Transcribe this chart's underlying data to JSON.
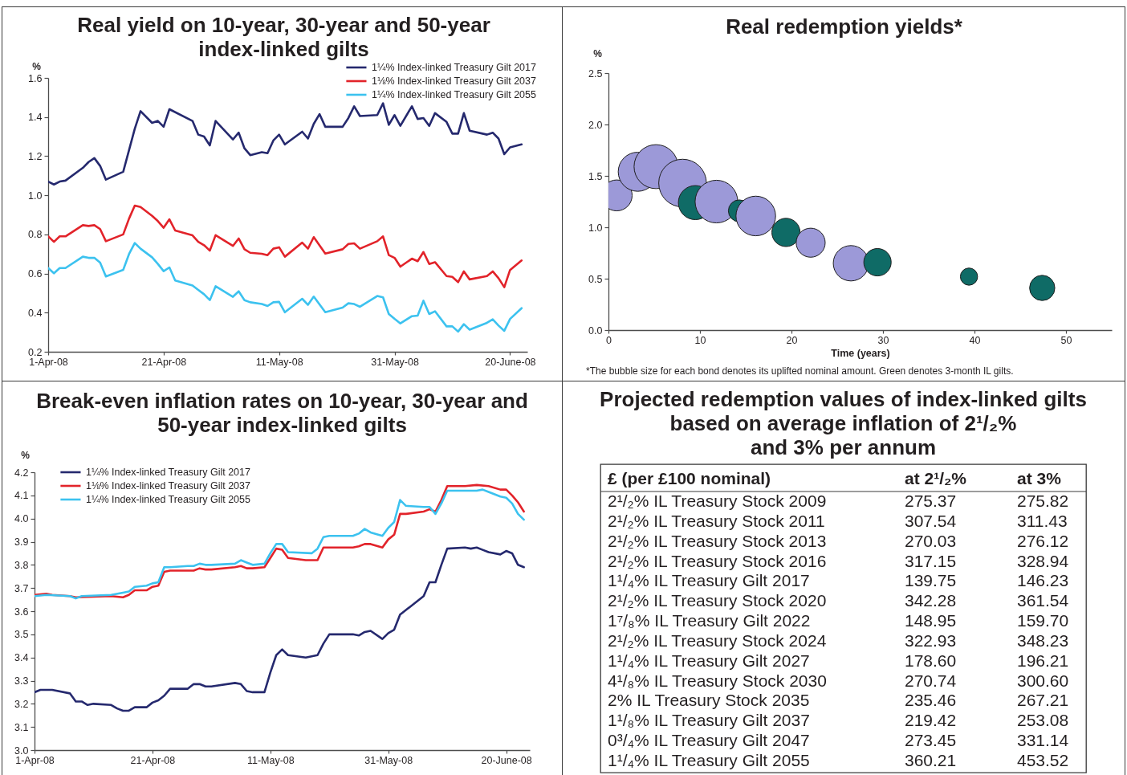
{
  "chart_data": [
    {
      "type": "line",
      "title": "Real yield on 10-year, 30-year and 50-year index-linked gilts",
      "ylabel": "%",
      "legend": "top right",
      "xlim": [
        "2008-04-01",
        "2008-06-23"
      ],
      "xticks": [
        {
          "value": "2008-04-01",
          "label": "1-Apr-08"
        },
        {
          "value": "2008-04-21",
          "label": "21-Apr-08"
        },
        {
          "value": "2008-05-11",
          "label": "11-May-08"
        },
        {
          "value": "2008-05-31",
          "label": "31-May-08"
        },
        {
          "value": "2008-06-20",
          "label": "20-June-08"
        }
      ],
      "ylim": [
        0.2,
        1.6
      ],
      "yticks": [
        0.2,
        0.4,
        0.6,
        0.8,
        {
          "value": 1,
          "label": "1.0"
        },
        1.2,
        1.4,
        1.6
      ],
      "series": [
        {
          "name": "1¼% Index-linked Treasury Gilt 2017",
          "color": "#25296e",
          "x": [
            "2008-04-01",
            "2008-04-02",
            "2008-04-03",
            "2008-04-04",
            "2008-04-07",
            "2008-04-08",
            "2008-04-09",
            "2008-04-10",
            "2008-04-11",
            "2008-04-14",
            "2008-04-16",
            "2008-04-17",
            "2008-04-19",
            "2008-04-20",
            "2008-04-21",
            "2008-04-22",
            "2008-04-26",
            "2008-04-27",
            "2008-04-28",
            "2008-04-29",
            "2008-04-30",
            "2008-05-03",
            "2008-05-04",
            "2008-05-05",
            "2008-05-06",
            "2008-05-08",
            "2008-05-09",
            "2008-05-10",
            "2008-05-11",
            "2008-05-12",
            "2008-05-15",
            "2008-05-16",
            "2008-05-17",
            "2008-05-18",
            "2008-05-19",
            "2008-05-22",
            "2008-05-23",
            "2008-05-24",
            "2008-05-25",
            "2008-05-28",
            "2008-05-29",
            "2008-05-30",
            "2008-05-31",
            "2008-06-01",
            "2008-06-03",
            "2008-06-04",
            "2008-06-05",
            "2008-06-06",
            "2008-06-07",
            "2008-06-09",
            "2008-06-10",
            "2008-06-11",
            "2008-06-12",
            "2008-06-13",
            "2008-06-16",
            "2008-06-17",
            "2008-06-18",
            "2008-06-19",
            "2008-06-20",
            "2008-06-22"
          ],
          "values": [
            1.07,
            1.055,
            1.07,
            1.075,
            1.14,
            1.17,
            1.19,
            1.15,
            1.08,
            1.12,
            1.34,
            1.43,
            1.37,
            1.38,
            1.35,
            1.44,
            1.38,
            1.31,
            1.3,
            1.255,
            1.38,
            1.285,
            1.32,
            1.24,
            1.205,
            1.22,
            1.215,
            1.28,
            1.31,
            1.26,
            1.325,
            1.29,
            1.365,
            1.415,
            1.35,
            1.35,
            1.395,
            1.455,
            1.405,
            1.41,
            1.47,
            1.36,
            1.41,
            1.355,
            1.455,
            1.39,
            1.395,
            1.355,
            1.42,
            1.375,
            1.315,
            1.315,
            1.42,
            1.33,
            1.31,
            1.32,
            1.29,
            1.21,
            1.245,
            1.26
          ]
        },
        {
          "name": "1⅛% Index-linked Treasury Gilt 2037",
          "color": "#e2232a",
          "x": [
            "2008-04-01",
            "2008-04-02",
            "2008-04-03",
            "2008-04-04",
            "2008-04-07",
            "2008-04-08",
            "2008-04-09",
            "2008-04-10",
            "2008-04-11",
            "2008-04-14",
            "2008-04-15",
            "2008-04-16",
            "2008-04-17",
            "2008-04-19",
            "2008-04-20",
            "2008-04-21",
            "2008-04-22",
            "2008-04-23",
            "2008-04-26",
            "2008-04-27",
            "2008-04-28",
            "2008-04-29",
            "2008-04-30",
            "2008-05-03",
            "2008-05-04",
            "2008-05-05",
            "2008-05-06",
            "2008-05-08",
            "2008-05-09",
            "2008-05-10",
            "2008-05-11",
            "2008-05-12",
            "2008-05-15",
            "2008-05-16",
            "2008-05-17",
            "2008-05-19",
            "2008-05-22",
            "2008-05-23",
            "2008-05-24",
            "2008-05-25",
            "2008-05-28",
            "2008-05-29",
            "2008-05-30",
            "2008-05-31",
            "2008-06-01",
            "2008-06-03",
            "2008-06-04",
            "2008-06-05",
            "2008-06-06",
            "2008-06-07",
            "2008-06-09",
            "2008-06-10",
            "2008-06-11",
            "2008-06-12",
            "2008-06-13",
            "2008-06-16",
            "2008-06-17",
            "2008-06-18",
            "2008-06-19",
            "2008-06-20",
            "2008-06-22"
          ],
          "values": [
            0.79,
            0.762,
            0.79,
            0.79,
            0.847,
            0.843,
            0.847,
            0.827,
            0.765,
            0.8,
            0.88,
            0.947,
            0.94,
            0.895,
            0.868,
            0.834,
            0.877,
            0.82,
            0.795,
            0.762,
            0.745,
            0.717,
            0.796,
            0.741,
            0.779,
            0.724,
            0.706,
            0.701,
            0.694,
            0.727,
            0.734,
            0.686,
            0.758,
            0.727,
            0.786,
            0.702,
            0.724,
            0.751,
            0.754,
            0.727,
            0.765,
            0.79,
            0.694,
            0.68,
            0.635,
            0.676,
            0.663,
            0.71,
            0.649,
            0.658,
            0.587,
            0.583,
            0.556,
            0.611,
            0.57,
            0.587,
            0.611,
            0.576,
            0.53,
            0.618,
            0.667
          ]
        },
        {
          "name": "1¼% Index-linked Treasury Gilt 2055",
          "color": "#3cc2ef",
          "x": [
            "2008-04-01",
            "2008-04-02",
            "2008-04-03",
            "2008-04-04",
            "2008-04-07",
            "2008-04-08",
            "2008-04-09",
            "2008-04-10",
            "2008-04-11",
            "2008-04-14",
            "2008-04-15",
            "2008-04-16",
            "2008-04-17",
            "2008-04-19",
            "2008-04-20",
            "2008-04-21",
            "2008-04-22",
            "2008-04-23",
            "2008-04-26",
            "2008-04-27",
            "2008-04-28",
            "2008-04-29",
            "2008-04-30",
            "2008-05-03",
            "2008-05-04",
            "2008-05-05",
            "2008-05-06",
            "2008-05-08",
            "2008-05-09",
            "2008-05-10",
            "2008-05-11",
            "2008-05-12",
            "2008-05-15",
            "2008-05-16",
            "2008-05-17",
            "2008-05-19",
            "2008-05-22",
            "2008-05-23",
            "2008-05-24",
            "2008-05-25",
            "2008-05-28",
            "2008-05-29",
            "2008-05-30",
            "2008-05-31",
            "2008-06-01",
            "2008-06-03",
            "2008-06-04",
            "2008-06-05",
            "2008-06-06",
            "2008-06-07",
            "2008-06-09",
            "2008-06-10",
            "2008-06-11",
            "2008-06-12",
            "2008-06-13",
            "2008-06-16",
            "2008-06-17",
            "2008-06-18",
            "2008-06-19",
            "2008-06-20",
            "2008-06-22"
          ],
          "values": [
            0.628,
            0.601,
            0.628,
            0.628,
            0.686,
            0.68,
            0.68,
            0.656,
            0.585,
            0.619,
            0.699,
            0.756,
            0.727,
            0.683,
            0.649,
            0.612,
            0.631,
            0.564,
            0.539,
            0.516,
            0.494,
            0.464,
            0.535,
            0.481,
            0.509,
            0.464,
            0.453,
            0.444,
            0.434,
            0.453,
            0.455,
            0.402,
            0.471,
            0.44,
            0.482,
            0.402,
            0.426,
            0.448,
            0.444,
            0.43,
            0.485,
            0.478,
            0.393,
            0.368,
            0.345,
            0.382,
            0.385,
            0.461,
            0.393,
            0.407,
            0.33,
            0.33,
            0.303,
            0.341,
            0.313,
            0.348,
            0.366,
            0.334,
            0.307,
            0.368,
            0.423
          ]
        }
      ]
    },
    {
      "type": "bubble",
      "title": "Real redemption yields*",
      "xlabel": "Time (years)",
      "ylabel": "%",
      "annotations": [
        "*The bubble size for each bond denotes its uplifted nominal amount. Green denotes 3-month IL gilts."
      ],
      "xlim": [
        0,
        55
      ],
      "xticks": [
        0,
        10,
        20,
        30,
        40,
        50
      ],
      "ylim": [
        0,
        2.5
      ],
      "yticks": [
        {
          "value": 0,
          "label": "0.0"
        },
        0.5,
        {
          "value": 1,
          "label": "1.0"
        },
        1.5,
        {
          "value": 2,
          "label": "2.0"
        },
        2.5
      ],
      "series": [
        {
          "color": "#9c99d8",
          "x": [
            0.9,
            3.2,
            5.2,
            8.1,
            11.8,
            16.1,
            22.1,
            26.5
          ],
          "values": [
            1.31,
            1.54,
            1.59,
            1.43,
            1.25,
            1.11,
            0.85,
            0.65
          ],
          "sizes": [
            0.42,
            0.67,
            0.85,
            1,
            0.8,
            0.69,
            0.37,
            0.55
          ]
        },
        {
          "color": "#0f6b66",
          "x": [
            9.5,
            14.3,
            19.4,
            29.4,
            39.4,
            47.4
          ],
          "values": [
            1.24,
            1.16,
            0.95,
            0.66,
            0.52,
            0.41
          ],
          "sizes": [
            0.51,
            0.21,
            0.35,
            0.33,
            0.13,
            0.28
          ]
        }
      ]
    },
    {
      "type": "line",
      "title": "Break-even inflation rates on 10-year, 30-year and 50-year index-linked gilts",
      "ylabel": "%",
      "legend": "top left",
      "xlim": [
        "2008-04-01",
        "2008-06-24"
      ],
      "xticks": [
        {
          "value": "2008-04-01",
          "label": "1-Apr-08"
        },
        {
          "value": "2008-04-21",
          "label": "21-Apr-08"
        },
        {
          "value": "2008-05-11",
          "label": "11-May-08"
        },
        {
          "value": "2008-05-31",
          "label": "31-May-08"
        },
        {
          "value": "2008-06-20",
          "label": "20-June-08"
        }
      ],
      "ylim": [
        3,
        4.2
      ],
      "yticks": [
        {
          "value": 3,
          "label": "3.0"
        },
        3.1,
        3.2,
        3.3,
        3.4,
        3.5,
        3.6,
        3.7,
        3.8,
        3.9,
        {
          "value": 4,
          "label": "4.0"
        },
        4.1,
        4.2
      ],
      "series": [
        {
          "name": "1¼% Index-linked Treasury Gilt 2017",
          "color": "#25296e",
          "x": [
            "2008-04-01",
            "2008-04-02",
            "2008-04-03",
            "2008-04-04",
            "2008-04-07",
            "2008-04-08",
            "2008-04-09",
            "2008-04-10",
            "2008-04-11",
            "2008-04-14",
            "2008-04-15",
            "2008-04-16",
            "2008-04-17",
            "2008-04-18",
            "2008-04-20",
            "2008-04-21",
            "2008-04-22",
            "2008-04-23",
            "2008-04-24",
            "2008-04-27",
            "2008-04-28",
            "2008-04-29",
            "2008-04-30",
            "2008-05-01",
            "2008-05-05",
            "2008-05-06",
            "2008-05-07",
            "2008-05-08",
            "2008-05-10",
            "2008-05-11",
            "2008-05-12",
            "2008-05-13",
            "2008-05-14",
            "2008-05-17",
            "2008-05-18",
            "2008-05-19",
            "2008-05-20",
            "2008-05-21",
            "2008-05-25",
            "2008-05-26",
            "2008-05-27",
            "2008-05-28",
            "2008-05-30",
            "2008-05-31",
            "2008-06-01",
            "2008-06-02",
            "2008-06-03",
            "2008-06-06",
            "2008-06-07",
            "2008-06-08",
            "2008-06-09",
            "2008-06-10",
            "2008-06-13",
            "2008-06-14",
            "2008-06-15",
            "2008-06-16",
            "2008-06-17",
            "2008-06-19",
            "2008-06-20",
            "2008-06-21",
            "2008-06-22",
            "2008-06-23"
          ],
          "values": [
            3.25,
            3.26,
            3.26,
            3.26,
            3.245,
            3.21,
            3.21,
            3.195,
            3.2,
            3.195,
            3.18,
            3.17,
            3.17,
            3.185,
            3.185,
            3.205,
            3.215,
            3.235,
            3.265,
            3.265,
            3.285,
            3.285,
            3.275,
            3.275,
            3.29,
            3.285,
            3.255,
            3.25,
            3.25,
            3.335,
            3.41,
            3.435,
            3.41,
            3.4,
            3.405,
            3.41,
            3.46,
            3.5,
            3.5,
            3.495,
            3.51,
            3.515,
            3.48,
            3.505,
            3.52,
            3.585,
            3.605,
            3.665,
            3.725,
            3.725,
            3.8,
            3.87,
            3.875,
            3.87,
            3.875,
            3.865,
            3.855,
            3.845,
            3.86,
            3.85,
            3.8,
            3.79
          ]
        },
        {
          "name": "1⅛% Index-linked Treasury Gilt 2037",
          "color": "#e2232a",
          "x": [
            "2008-04-01",
            "2008-04-03",
            "2008-04-04",
            "2008-04-07",
            "2008-04-08",
            "2008-04-14",
            "2008-04-16",
            "2008-04-17",
            "2008-04-18",
            "2008-04-20",
            "2008-04-21",
            "2008-04-22",
            "2008-04-23",
            "2008-04-24",
            "2008-04-27",
            "2008-04-28",
            "2008-04-29",
            "2008-04-30",
            "2008-05-01",
            "2008-05-05",
            "2008-05-06",
            "2008-05-07",
            "2008-05-08",
            "2008-05-10",
            "2008-05-11",
            "2008-05-12",
            "2008-05-13",
            "2008-05-14",
            "2008-05-17",
            "2008-05-18",
            "2008-05-19",
            "2008-05-20",
            "2008-05-21",
            "2008-05-25",
            "2008-05-26",
            "2008-05-27",
            "2008-05-28",
            "2008-05-30",
            "2008-05-31",
            "2008-06-01",
            "2008-06-02",
            "2008-06-03",
            "2008-06-06",
            "2008-06-07",
            "2008-06-08",
            "2008-06-09",
            "2008-06-10",
            "2008-06-13",
            "2008-06-15",
            "2008-06-17",
            "2008-06-19",
            "2008-06-20",
            "2008-06-21",
            "2008-06-22",
            "2008-06-23"
          ],
          "values": [
            3.67,
            3.675,
            3.67,
            3.665,
            3.66,
            3.665,
            3.66,
            3.67,
            3.69,
            3.69,
            3.705,
            3.71,
            3.77,
            3.775,
            3.775,
            3.775,
            3.785,
            3.78,
            3.78,
            3.79,
            3.795,
            3.785,
            3.785,
            3.79,
            3.83,
            3.87,
            3.865,
            3.83,
            3.82,
            3.82,
            3.82,
            3.875,
            3.875,
            3.875,
            3.88,
            3.89,
            3.89,
            3.875,
            3.91,
            3.93,
            4.02,
            4.02,
            4.03,
            4.04,
            4.03,
            4.08,
            4.14,
            4.14,
            4.145,
            4.14,
            4.125,
            4.125,
            4.1,
            4.07,
            4.03
          ]
        },
        {
          "name": "1¼% Index-linked Treasury Gilt 2055",
          "color": "#3cc2ef",
          "x": [
            "2008-04-01",
            "2008-04-03",
            "2008-04-07",
            "2008-04-08",
            "2008-04-09",
            "2008-04-14",
            "2008-04-16",
            "2008-04-17",
            "2008-04-18",
            "2008-04-20",
            "2008-04-21",
            "2008-04-22",
            "2008-04-23",
            "2008-04-24",
            "2008-04-27",
            "2008-04-28",
            "2008-04-29",
            "2008-04-30",
            "2008-05-01",
            "2008-05-05",
            "2008-05-06",
            "2008-05-07",
            "2008-05-08",
            "2008-05-10",
            "2008-05-11",
            "2008-05-12",
            "2008-05-13",
            "2008-05-14",
            "2008-05-18",
            "2008-05-19",
            "2008-05-20",
            "2008-05-21",
            "2008-05-25",
            "2008-05-26",
            "2008-05-27",
            "2008-05-28",
            "2008-05-30",
            "2008-05-31",
            "2008-06-01",
            "2008-06-02",
            "2008-06-03",
            "2008-06-06",
            "2008-06-07",
            "2008-06-08",
            "2008-06-09",
            "2008-06-10",
            "2008-06-13",
            "2008-06-15",
            "2008-06-16",
            "2008-06-17",
            "2008-06-19",
            "2008-06-20",
            "2008-06-21",
            "2008-06-22",
            "2008-06-23"
          ],
          "values": [
            3.665,
            3.67,
            3.665,
            3.655,
            3.665,
            3.67,
            3.68,
            3.685,
            3.705,
            3.71,
            3.72,
            3.725,
            3.79,
            3.79,
            3.795,
            3.795,
            3.805,
            3.8,
            3.8,
            3.805,
            3.82,
            3.81,
            3.8,
            3.805,
            3.85,
            3.89,
            3.89,
            3.855,
            3.85,
            3.87,
            3.92,
            3.925,
            3.925,
            3.935,
            3.955,
            3.94,
            3.925,
            3.96,
            3.985,
            4.08,
            4.055,
            4.05,
            4.05,
            4.02,
            4.065,
            4.12,
            4.12,
            4.12,
            4.125,
            4.115,
            4.095,
            4.09,
            4.065,
            4.02,
            3.995
          ]
        }
      ]
    },
    {
      "type": "other",
      "title": "Projected redemption values of index-linked gilts based on average inflation of 2¹/₂% and 3% per annum",
      "ylabel": "£ (per £100 nominal)",
      "categories": [
        "2¹/₂% IL Treasury Stock 2009",
        "2¹/₂% IL Treasury Stock 2011",
        "2¹/₂% IL Treasury Stock 2013",
        "2¹/₂% IL Treasury Stock 2016",
        "1¹/₄% IL Treasury Gilt 2017",
        "2¹/₂% IL Treasury Stock 2020",
        "1⁷/₈% IL Treasury Gilt 2022",
        "2¹/₂% IL Treasury Stock 2024",
        "1¹/₄% IL Treasury Gilt 2027",
        "4¹/₈% IL Treasury Stock 2030",
        "2% IL Treasury Stock 2035",
        "1¹/₈% IL Treasury Gilt 2037",
        "0³/₄% IL Treasury Gilt 2047",
        "1¹/₄% IL Treasury Gilt 2055"
      ],
      "series": [
        {
          "name": "at 2¹/₂%",
          "values": [
            275.37,
            307.54,
            270.03,
            317.15,
            139.75,
            342.28,
            148.95,
            322.93,
            178.6,
            270.74,
            235.46,
            219.42,
            273.45,
            360.21
          ],
          "value_labels": [
            "275.37",
            "307.54",
            "270.03",
            "317.15",
            "139.75",
            "342.28",
            "148.95",
            "322.93",
            "178.60",
            "270.74",
            "235.46",
            "219.42",
            "273.45",
            "360.21"
          ]
        },
        {
          "name": "at 3%",
          "values": [
            275.82,
            311.43,
            276.12,
            328.94,
            146.23,
            361.54,
            159.7,
            348.23,
            196.21,
            300.6,
            267.21,
            253.08,
            331.14,
            453.52
          ],
          "value_labels": [
            "275.82",
            "311.43",
            "276.12",
            "328.94",
            "146.23",
            "361.54",
            "159.70",
            "348.23",
            "196.21",
            "300.60",
            "267.21",
            "253.08",
            "331.14",
            "453.52"
          ]
        }
      ]
    }
  ]
}
